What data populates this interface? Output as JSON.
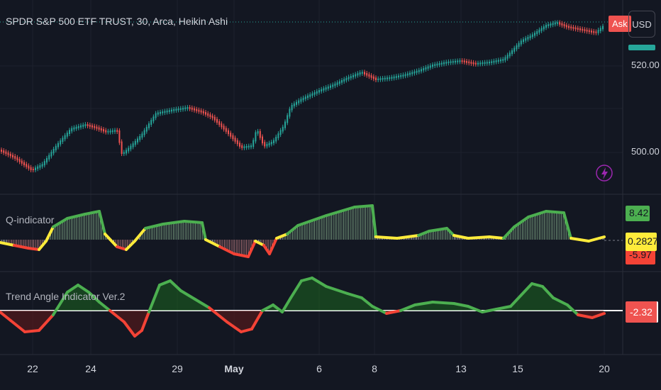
{
  "header": {
    "symbol_title": "SPDR S&P 500 ETF TRUST, 30, Arca, Heikin Ashi",
    "ask_label": "Ask",
    "currency_button": "USD"
  },
  "price_axis": {
    "labels": [
      "520.00",
      "500.00"
    ]
  },
  "panes": {
    "q_indicator": {
      "title": "Q-indicator",
      "badge_high": "8.42",
      "badge_current": "0.2827",
      "badge_low": "-5.97"
    },
    "trend_angle": {
      "title": "Trend Angle Indicator Ver.2",
      "badge_current": "-2.32"
    }
  },
  "time_axis": {
    "labels": [
      "22",
      "24",
      "29",
      "May",
      "6",
      "8",
      "13",
      "15",
      "20"
    ]
  },
  "colors": {
    "background": "#131722",
    "bull": "#26a69a",
    "bear": "#ef5350",
    "q_green": "#4caf50",
    "q_yellow": "#ffeb3b",
    "q_red": "#f44336",
    "lightning": "#9c27b0"
  },
  "icons": {
    "lightning": "lightning-icon"
  }
}
